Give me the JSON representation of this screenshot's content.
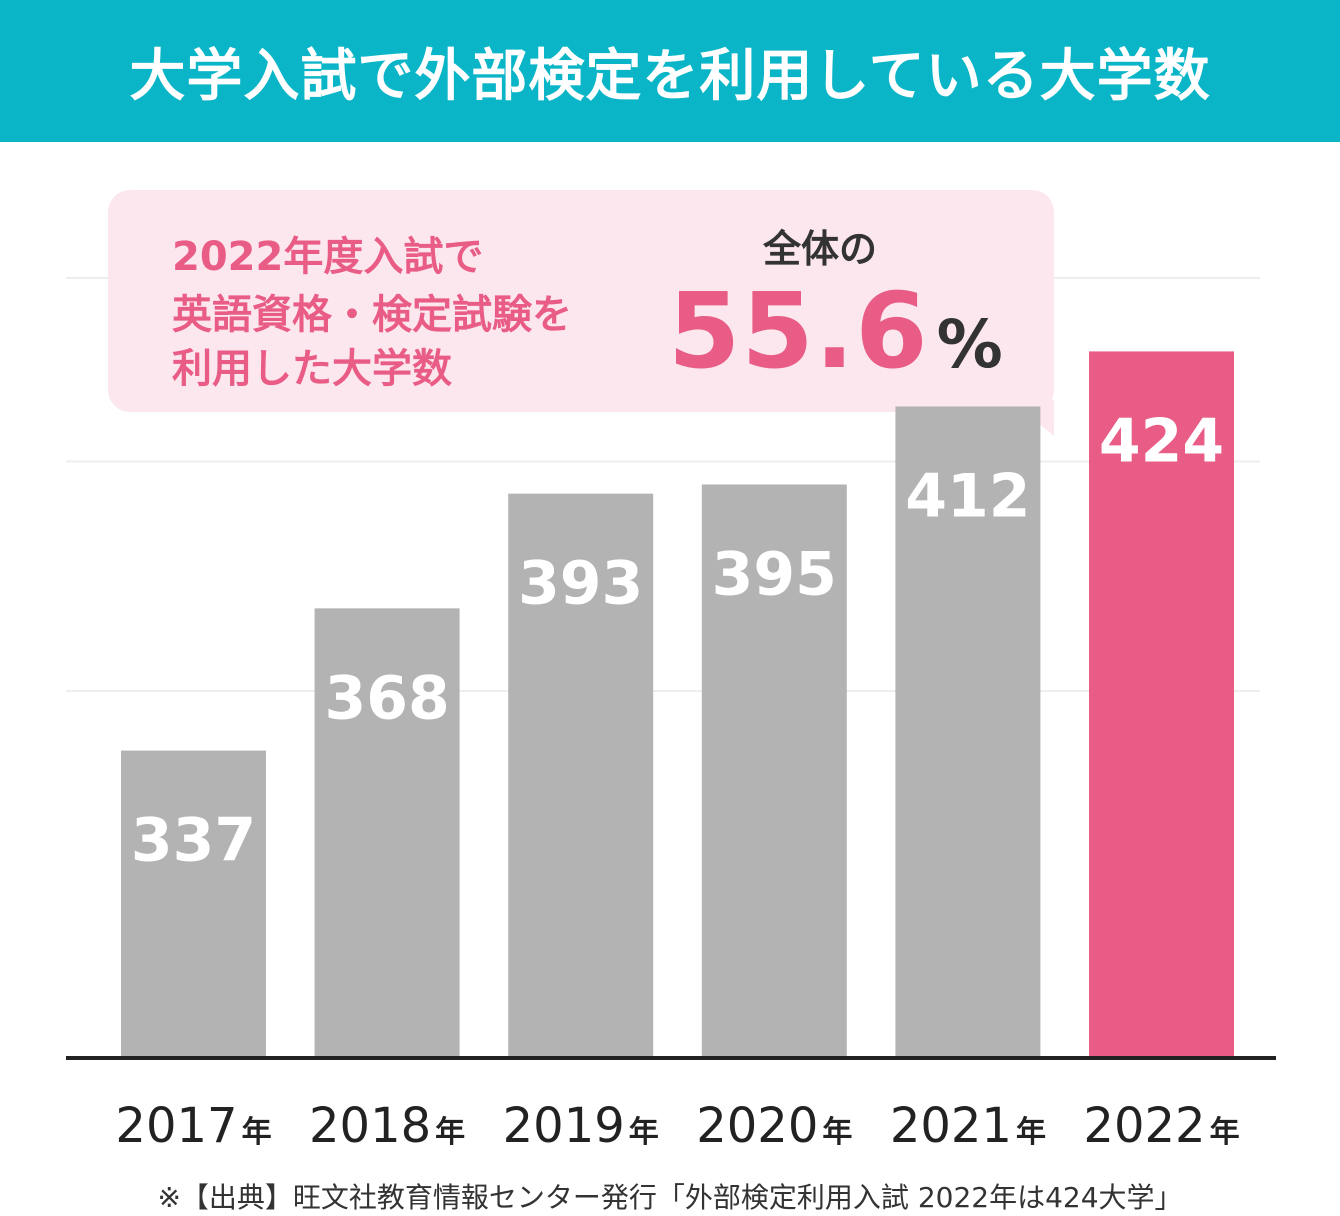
{
  "header": {
    "title": "大学入試で外部検定を利用している大学数"
  },
  "callout": {
    "line1": "2022年度入試で",
    "line2": "英語資格・検定試験を",
    "line3": "利用した大学数",
    "whole_label": "全体の",
    "percent_value": "55.6",
    "percent_unit": "%"
  },
  "footnote": "※【出典】旺文社教育情報センター発行「外部検定利用入試 2022年は424大学」",
  "colors": {
    "header_bg": "#0ab5c8",
    "accent_pink": "#e85c86",
    "bar_gray": "#b3b3b3",
    "callout_bg": "#fde7ee"
  },
  "chart_data": {
    "type": "bar",
    "title": "大学入試で外部検定を利用している大学数",
    "categories": [
      "2017",
      "2018",
      "2019",
      "2020",
      "2021",
      "2022"
    ],
    "category_suffix": "年",
    "values": [
      337,
      368,
      393,
      395,
      412,
      424
    ],
    "highlight_index": 5,
    "ylim": [
      270,
      440
    ],
    "grid": true,
    "xlabel": "",
    "ylabel": ""
  }
}
